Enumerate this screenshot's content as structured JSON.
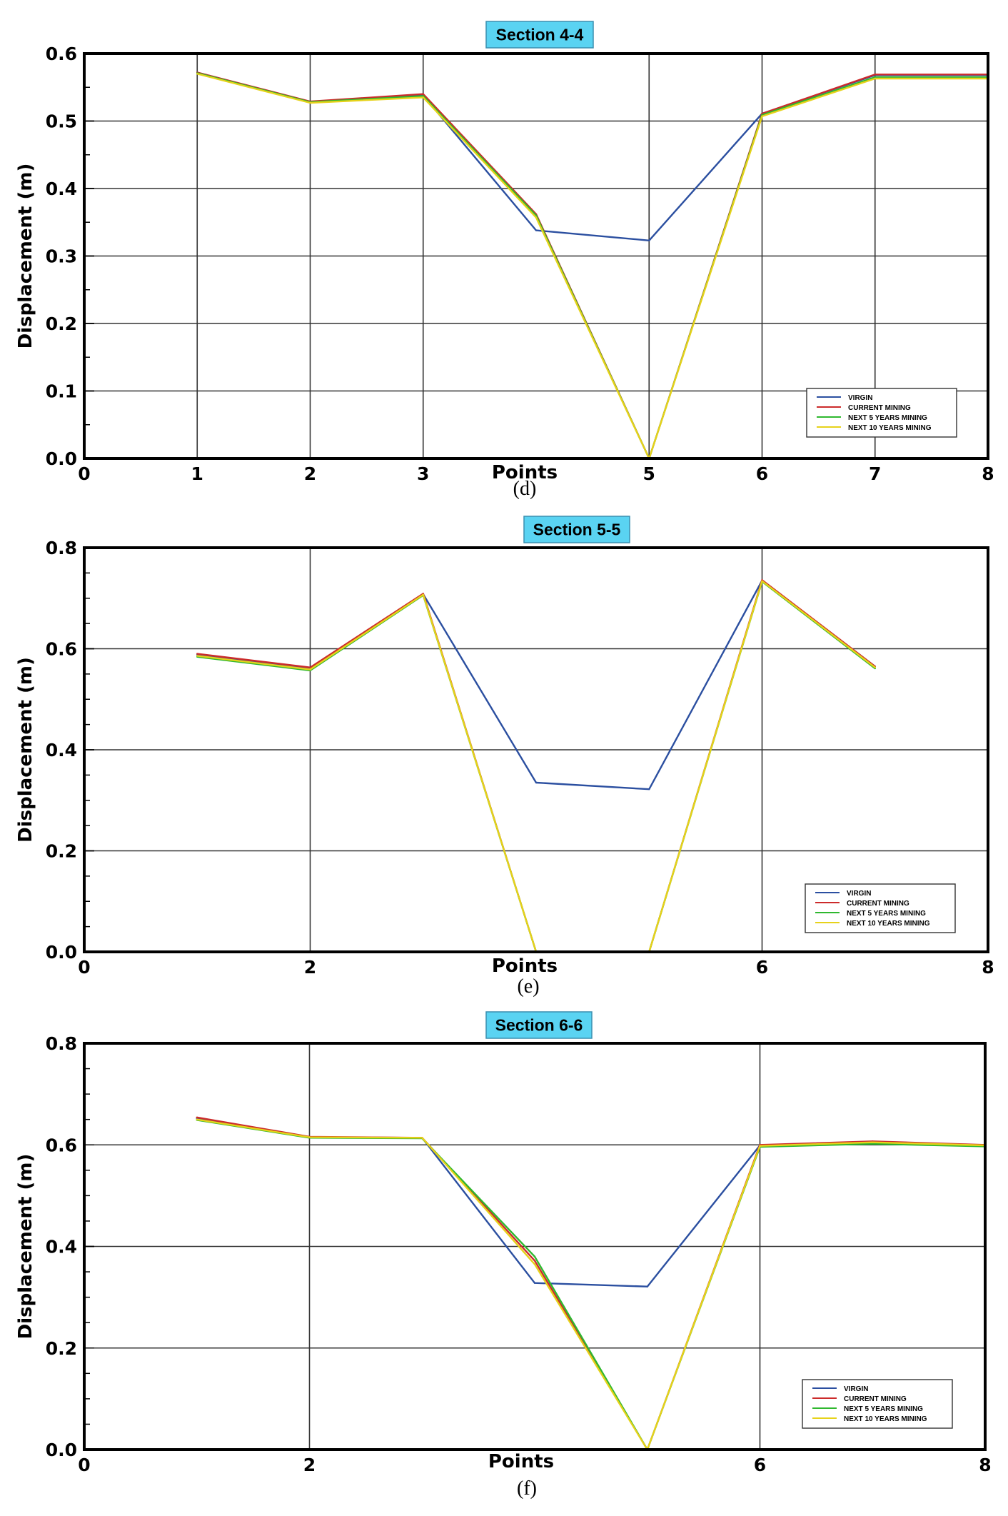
{
  "chart_data": [
    {
      "type": "line",
      "title": "Section 4-4",
      "caption": "(d)",
      "xlabel": "Points",
      "ylabel": "Displacement (m)",
      "xlim": [
        0,
        8
      ],
      "ylim": [
        0,
        0.6
      ],
      "xticks": [
        "0",
        "1",
        "2",
        "3",
        "5",
        "6",
        "7",
        "8"
      ],
      "yticks": [
        "0.0",
        "0.1",
        "0.2",
        "0.3",
        "0.4",
        "0.5",
        "0.6"
      ],
      "grid": true,
      "legend_position": "bottom-right",
      "x": [
        1,
        2,
        3,
        4,
        5,
        6,
        7,
        8
      ],
      "series": [
        {
          "name": "VIRGIN",
          "color": "#2b4fa0",
          "values": [
            0.572,
            0.528,
            0.538,
            0.338,
            0.323,
            0.511,
            0.568,
            0.568
          ]
        },
        {
          "name": "CURRENT MINING",
          "color": "#cc2b2b",
          "values": [
            0.572,
            0.529,
            0.54,
            0.362,
            0.0,
            0.511,
            0.569,
            0.569
          ]
        },
        {
          "name": "NEXT 5 YEARS MINING",
          "color": "#2fb82f",
          "values": [
            0.571,
            0.528,
            0.537,
            0.36,
            0.0,
            0.509,
            0.565,
            0.565
          ]
        },
        {
          "name": "NEXT 10 YEARS MINING",
          "color": "#e6d21a",
          "values": [
            0.57,
            0.527,
            0.535,
            0.357,
            0.0,
            0.507,
            0.563,
            0.563
          ]
        }
      ]
    },
    {
      "type": "line",
      "title": "Section 5-5",
      "caption": "(e)",
      "xlabel": "Points",
      "ylabel": "Displacement (m)",
      "xlim": [
        0,
        8
      ],
      "ylim": [
        0,
        0.8
      ],
      "xticks": [
        "0",
        "2",
        "6",
        "8"
      ],
      "yticks": [
        "0.0",
        "0.2",
        "0.4",
        "0.6",
        "0.8"
      ],
      "grid": true,
      "legend_position": "bottom-right",
      "x": [
        1,
        2,
        3,
        4,
        5,
        6,
        7
      ],
      "series": [
        {
          "name": "VIRGIN",
          "color": "#2b4fa0",
          "values": [
            0.588,
            0.562,
            0.708,
            0.335,
            0.322,
            0.735,
            0.565
          ]
        },
        {
          "name": "CURRENT MINING",
          "color": "#cc2b2b",
          "values": [
            0.59,
            0.563,
            0.709,
            0.0,
            0.0,
            0.736,
            0.565
          ]
        },
        {
          "name": "NEXT 5 YEARS MINING",
          "color": "#2fb82f",
          "values": [
            0.584,
            0.557,
            0.706,
            0.0,
            0.0,
            0.733,
            0.561
          ]
        },
        {
          "name": "NEXT 10 YEARS MINING",
          "color": "#e6d21a",
          "values": [
            0.586,
            0.559,
            0.707,
            0.0,
            0.0,
            0.734,
            0.563
          ]
        }
      ]
    },
    {
      "type": "line",
      "title": "Section 6-6",
      "caption": "(f)",
      "xlabel": "Points",
      "ylabel": "Displacement (m)",
      "xlim": [
        0,
        8
      ],
      "ylim": [
        0,
        0.8
      ],
      "xticks": [
        "0",
        "2",
        "6",
        "8"
      ],
      "yticks": [
        "0.0",
        "0.2",
        "0.4",
        "0.6",
        "0.8"
      ],
      "grid": true,
      "legend_position": "bottom-right",
      "x": [
        1,
        2,
        3,
        4,
        5,
        6,
        7,
        8
      ],
      "series": [
        {
          "name": "VIRGIN",
          "color": "#2b4fa0",
          "values": [
            0.652,
            0.615,
            0.614,
            0.328,
            0.321,
            0.599,
            0.604,
            0.599
          ]
        },
        {
          "name": "CURRENT MINING",
          "color": "#cc2b2b",
          "values": [
            0.654,
            0.616,
            0.614,
            0.372,
            0.0,
            0.6,
            0.607,
            0.6
          ]
        },
        {
          "name": "NEXT 5 YEARS MINING",
          "color": "#2fb82f",
          "values": [
            0.649,
            0.614,
            0.613,
            0.38,
            0.0,
            0.596,
            0.602,
            0.597
          ]
        },
        {
          "name": "NEXT 10 YEARS MINING",
          "color": "#e6d21a",
          "values": [
            0.65,
            0.615,
            0.614,
            0.365,
            0.0,
            0.598,
            0.605,
            0.599
          ]
        }
      ]
    }
  ]
}
